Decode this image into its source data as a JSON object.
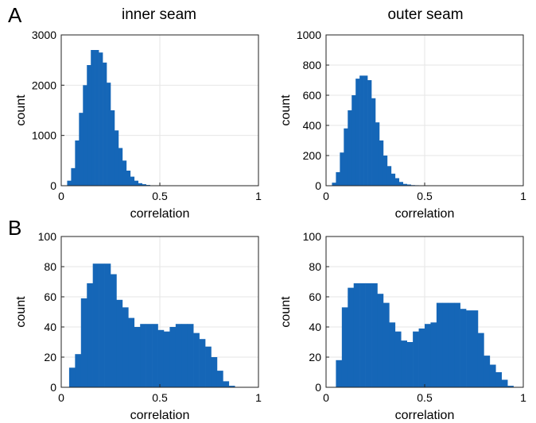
{
  "panel_labels": [
    "A",
    "B"
  ],
  "column_titles": [
    "inner seam",
    "outer seam"
  ],
  "colors": {
    "bar": "#1566b7",
    "axis": "#222222",
    "grid": "#e6e6e6"
  },
  "chart_data": [
    {
      "type": "bar",
      "panel": "A",
      "title": "inner seam",
      "xlabel": "correlation",
      "ylabel": "count",
      "xlim": [
        0,
        1
      ],
      "ylim": [
        0,
        3000
      ],
      "xticks": [
        0,
        0.5,
        1
      ],
      "yticks": [
        0,
        1000,
        2000,
        3000
      ],
      "grid": true,
      "bin_edges": [
        0.03,
        0.05,
        0.07,
        0.09,
        0.11,
        0.13,
        0.15,
        0.17,
        0.19,
        0.21,
        0.23,
        0.25,
        0.27,
        0.29,
        0.31,
        0.33,
        0.35,
        0.37,
        0.39,
        0.41,
        0.43,
        0.45,
        0.47,
        0.49
      ],
      "values": [
        100,
        350,
        900,
        1450,
        2000,
        2400,
        2700,
        2700,
        2650,
        2450,
        2050,
        1500,
        1100,
        750,
        500,
        300,
        180,
        100,
        50,
        30,
        15,
        8,
        3
      ]
    },
    {
      "type": "bar",
      "panel": "A",
      "title": "outer seam",
      "xlabel": "correlation",
      "ylabel": "count",
      "xlim": [
        0,
        1
      ],
      "ylim": [
        0,
        1000
      ],
      "xticks": [
        0,
        0.5,
        1
      ],
      "yticks": [
        0,
        200,
        400,
        600,
        800,
        1000
      ],
      "grid": true,
      "bin_edges": [
        0.03,
        0.05,
        0.07,
        0.09,
        0.11,
        0.13,
        0.15,
        0.17,
        0.19,
        0.21,
        0.23,
        0.25,
        0.27,
        0.29,
        0.31,
        0.33,
        0.35,
        0.37,
        0.39,
        0.41,
        0.43,
        0.45,
        0.47,
        0.49,
        0.51
      ],
      "values": [
        20,
        90,
        220,
        380,
        500,
        600,
        710,
        730,
        730,
        700,
        580,
        420,
        300,
        200,
        130,
        80,
        50,
        25,
        12,
        8,
        4,
        3,
        2,
        1
      ]
    },
    {
      "type": "bar",
      "panel": "B",
      "title": "",
      "xlabel": "correlation",
      "ylabel": "count",
      "xlim": [
        0,
        1
      ],
      "ylim": [
        0,
        100
      ],
      "xticks": [
        0,
        0.5,
        1
      ],
      "yticks": [
        0,
        20,
        40,
        60,
        80,
        100
      ],
      "grid": true,
      "bin_edges": [
        0.04,
        0.07,
        0.1,
        0.13,
        0.16,
        0.19,
        0.22,
        0.25,
        0.28,
        0.31,
        0.34,
        0.37,
        0.4,
        0.43,
        0.46,
        0.49,
        0.52,
        0.55,
        0.58,
        0.61,
        0.64,
        0.67,
        0.7,
        0.73,
        0.76,
        0.79,
        0.82,
        0.85,
        0.88
      ],
      "values": [
        13,
        22,
        59,
        69,
        82,
        82,
        82,
        75,
        58,
        53,
        46,
        40,
        42,
        42,
        42,
        38,
        37,
        40,
        42,
        42,
        42,
        36,
        32,
        27,
        20,
        11,
        4,
        1
      ]
    },
    {
      "type": "bar",
      "panel": "B",
      "title": "",
      "xlabel": "correlation",
      "ylabel": "count",
      "xlim": [
        0,
        1
      ],
      "ylim": [
        0,
        100
      ],
      "xticks": [
        0,
        0.5,
        1
      ],
      "yticks": [
        0,
        20,
        40,
        60,
        80,
        100
      ],
      "grid": true,
      "bin_edges": [
        0.05,
        0.08,
        0.11,
        0.14,
        0.17,
        0.2,
        0.23,
        0.26,
        0.29,
        0.32,
        0.35,
        0.38,
        0.41,
        0.44,
        0.47,
        0.5,
        0.53,
        0.56,
        0.59,
        0.62,
        0.65,
        0.68,
        0.71,
        0.74,
        0.77,
        0.8,
        0.83,
        0.86,
        0.89,
        0.92,
        0.95
      ],
      "values": [
        18,
        53,
        66,
        69,
        69,
        69,
        69,
        62,
        56,
        43,
        37,
        31,
        30,
        37,
        39,
        42,
        43,
        56,
        56,
        56,
        56,
        52,
        51,
        51,
        36,
        21,
        15,
        10,
        5,
        1
      ]
    }
  ]
}
